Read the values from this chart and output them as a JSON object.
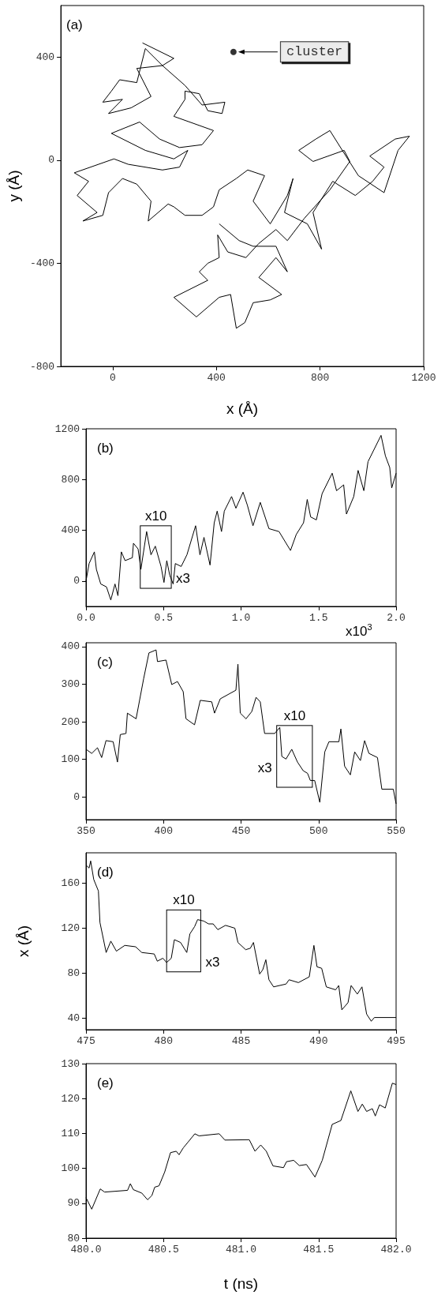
{
  "chart_data": [
    {
      "type": "line",
      "xlabel": "x (Å)",
      "ylabel": "y (Å)",
      "xlim": [
        -200,
        1200
      ],
      "xticks": [
        0,
        400,
        800,
        1200
      ],
      "ylim": [
        -800,
        600
      ],
      "yticks": [
        -800,
        -400,
        0,
        400
      ],
      "annotations": [
        "(a)"
      ],
      "series": [
        {
          "color": "#000000",
          "x": [
            115,
            236,
            192,
            126,
            93,
            27,
            -5,
            -38,
            38,
            -16,
            71,
            148,
            93,
            192,
            279,
            345,
            433,
            422,
            367,
            334,
            279,
            279,
            236,
            389,
            345,
            258,
            181,
            104,
            49,
            -5,
            126,
            236,
            290,
            258,
            192,
            60,
            5,
            -148,
            -93,
            -137,
            -60,
            -115,
            -38,
            -16,
            38,
            93,
            148,
            137,
            214,
            236,
            279,
            345,
            389,
            411,
            477,
            521,
            586,
            542,
            608,
            674,
            696,
            663,
            751,
            806,
            773,
            849,
            936,
            1003,
            1047,
            992,
            1090,
            1145,
            1101,
            1047,
            948,
            893,
            838,
            784,
            718,
            773,
            893,
            915,
            838,
            740,
            674,
            630,
            564,
            514,
            444,
            405,
            411,
            367,
            334,
            367,
            236,
            323,
            411,
            455,
            477,
            510,
            542,
            608,
            652,
            564,
            630,
            674,
            630,
            542,
            488,
            411
          ],
          "values": [
            455,
            395,
            367,
            433,
            301,
            312,
            268,
            225,
            236,
            181,
            203,
            247,
            356,
            367,
            290,
            214,
            225,
            181,
            192,
            258,
            268,
            236,
            170,
            115,
            60,
            49,
            82,
            148,
            126,
            104,
            38,
            5,
            38,
            -27,
            -38,
            -16,
            5,
            -49,
            -82,
            -137,
            -203,
            -236,
            -214,
            -126,
            -71,
            -93,
            -159,
            -236,
            -170,
            -181,
            -214,
            -214,
            -181,
            -115,
            -71,
            -38,
            -60,
            -159,
            -247,
            -137,
            -71,
            -203,
            -247,
            -345,
            -203,
            -82,
            -137,
            -82,
            -27,
            16,
            82,
            93,
            38,
            -126,
            -60,
            27,
            115,
            82,
            38,
            -5,
            38,
            -5,
            -115,
            -225,
            -312,
            -269,
            -323,
            -378,
            -356,
            -290,
            -378,
            -400,
            -433,
            -466,
            -532,
            -608,
            -532,
            -521,
            -652,
            -630,
            -553,
            -542,
            -521,
            -455,
            -378,
            -433,
            -334,
            -334,
            -312,
            -247
          ]
        },
        {
          "type": "scatter",
          "name": "cluster",
          "color": "#000000",
          "x": [
            466
          ],
          "values": [
            420
          ]
        }
      ]
    },
    {
      "type": "line",
      "xlim": [
        0,
        2
      ],
      "xticks": [
        {
          "value": 0,
          "label": "0.0"
        },
        0.5,
        {
          "value": 1,
          "label": "1.0"
        },
        1.5,
        {
          "value": 2,
          "label": "2.0"
        }
      ],
      "ylim": [
        -200,
        1200
      ],
      "yticks": [
        0,
        400,
        800,
        1200
      ],
      "annotations": [
        "(b)",
        "x10$^{3}$",
        "x10",
        "x3"
      ],
      "series": [
        {
          "color": "#000000",
          "x": [
            0,
            0.02,
            0.054,
            0.067,
            0.095,
            0.132,
            0.16,
            0.187,
            0.206,
            0.228,
            0.252,
            0.299,
            0.306,
            0.336,
            0.354,
            0.391,
            0.419,
            0.447,
            0.484,
            0.503,
            0.521,
            0.54,
            0.562,
            0.576,
            0.614,
            0.651,
            0.707,
            0.735,
            0.761,
            0.8,
            0.827,
            0.846,
            0.874,
            0.892,
            0.939,
            0.967,
            1.013,
            1.041,
            1.077,
            1.124,
            1.18,
            1.245,
            1.319,
            1.356,
            1.403,
            1.427,
            1.449,
            1.486,
            1.523,
            1.588,
            1.616,
            1.662,
            1.68,
            1.727,
            1.755,
            1.792,
            1.819,
            1.903,
            1.931,
            1.959,
            1.972,
            2.0
          ],
          "values": [
            0,
            138,
            230,
            92,
            -23,
            -46,
            -149,
            -23,
            -115,
            230,
            161,
            184,
            298,
            253,
            92,
            390,
            207,
            275,
            115,
            -11,
            161,
            46,
            -23,
            138,
            115,
            207,
            436,
            207,
            344,
            126,
            459,
            551,
            390,
            551,
            666,
            574,
            700,
            597,
            436,
            620,
            413,
            390,
            241,
            367,
            459,
            643,
            505,
            482,
            689,
            850,
            712,
            758,
            528,
            666,
            872,
            712,
            941,
            1148,
            987,
            895,
            734,
            850
          ]
        }
      ]
    },
    {
      "type": "line",
      "xlim": [
        350,
        550
      ],
      "xticks": [
        350,
        400,
        450,
        500,
        550
      ],
      "ylim": [
        -60,
        410
      ],
      "yticks": [
        0,
        100,
        200,
        300,
        400
      ],
      "annotations": [
        "(c)",
        "x10",
        "x3"
      ],
      "series": [
        {
          "color": "#000000",
          "x": [
            350,
            353.7,
            357.4,
            360.1,
            362.9,
            367.5,
            370.3,
            372.1,
            375.8,
            376.7,
            382.3,
            387.2,
            390.6,
            395.2,
            396.1,
            401.6,
            405.3,
            409,
            412.7,
            414.5,
            420,
            423.7,
            431.1,
            432.9,
            436.6,
            446.7,
            448,
            449.5,
            453.2,
            456.9,
            459.7,
            462.4,
            465.2,
            471.7,
            475,
            476.3,
            479,
            482.7,
            486.4,
            490.1,
            492.9,
            494.7,
            497.5,
            500.8,
            504,
            506.7,
            513.1,
            514.4,
            516.8,
            520.5,
            523.3,
            527,
            529.7,
            532.5,
            538,
            540.8,
            548.2,
            550
          ],
          "values": [
            127,
            116,
            131,
            105,
            150,
            147,
            93,
            166,
            169,
            223,
            208,
            315,
            383,
            391,
            360,
            364,
            299,
            307,
            280,
            208,
            192,
            257,
            253,
            223,
            261,
            284,
            353,
            223,
            208,
            227,
            265,
            253,
            169,
            169,
            185,
            108,
            101,
            127,
            93,
            70,
            63,
            44,
            44,
            -14,
            120,
            147,
            147,
            181,
            82,
            59,
            120,
            97,
            150,
            116,
            105,
            21,
            21,
            -18
          ]
        }
      ]
    },
    {
      "type": "line",
      "ylabel": "x (Å)",
      "xlim": [
        475,
        495
      ],
      "xticks": [
        475,
        480,
        485,
        490,
        495
      ],
      "ylim": [
        30,
        187
      ],
      "yticks": [
        40,
        80,
        120,
        160
      ],
      "annotations": [
        "(d)",
        "x10",
        "x3"
      ],
      "series": [
        {
          "color": "#000000",
          "x": [
            475,
            475.2,
            475.3,
            475.5,
            475.8,
            475.9,
            476.3,
            476.6,
            476.96,
            477.5,
            478.2,
            478.6,
            479.4,
            479.6,
            479.96,
            480.2,
            480.5,
            480.7,
            481.1,
            481.5,
            481.7,
            482,
            482.2,
            482.6,
            482.9,
            483.2,
            483.5,
            484,
            484.6,
            484.8,
            485.3,
            485.6,
            485.8,
            486.2,
            486.4,
            486.6,
            486.8,
            487.1,
            487.9,
            488.1,
            488.7,
            489.4,
            489.7,
            489.9,
            490.2,
            490.5,
            491.1,
            491.3,
            491.5,
            491.9,
            492.1,
            492.5,
            492.8,
            493.1,
            493.4,
            493.6,
            495
          ],
          "values": [
            176,
            173.5,
            179.8,
            163.3,
            153.1,
            125.2,
            98.5,
            108.6,
            99.7,
            104.8,
            103.6,
            98.5,
            97.2,
            90.8,
            93.4,
            89.6,
            93.4,
            109.9,
            107.4,
            98.5,
            115,
            121.4,
            127.7,
            126.4,
            123.9,
            123.9,
            118.8,
            122.6,
            120.1,
            107.4,
            101,
            102.3,
            107.4,
            79.4,
            83.2,
            92.1,
            74.3,
            68,
            70.5,
            74.3,
            71.8,
            76.9,
            104.8,
            85.8,
            84.5,
            68,
            65.4,
            69.2,
            47.6,
            54,
            69.2,
            61.6,
            68,
            43.8,
            37.5,
            40.8,
            40.8
          ]
        }
      ]
    },
    {
      "type": "line",
      "xlabel": "t (ns)",
      "xlim": [
        480,
        482
      ],
      "xticks": [
        {
          "value": 480,
          "label": "480.0"
        },
        {
          "value": 480.5,
          "label": "480.5"
        },
        {
          "value": 481,
          "label": "481.0"
        },
        {
          "value": 481.5,
          "label": "481.5"
        },
        {
          "value": 482,
          "label": "482.0"
        }
      ],
      "ylim": [
        80,
        130
      ],
      "yticks": [
        80,
        90,
        100,
        110,
        120,
        130
      ],
      "annotations": [
        "(e)"
      ],
      "series": [
        {
          "color": "#000000",
          "x": [
            480,
            480.037,
            480.092,
            480.12,
            480.268,
            480.286,
            480.305,
            480.36,
            480.397,
            480.425,
            480.443,
            480.471,
            480.508,
            480.545,
            480.582,
            480.6,
            480.628,
            480.656,
            480.702,
            480.729,
            480.859,
            480.896,
            481.053,
            481.09,
            481.127,
            481.163,
            481.206,
            481.274,
            481.293,
            481.339,
            481.376,
            481.422,
            481.477,
            481.524,
            481.588,
            481.644,
            481.708,
            481.754,
            481.782,
            481.81,
            481.847,
            481.866,
            481.893,
            481.93,
            481.976,
            482
          ],
          "values": [
            91.6,
            88.3,
            94.1,
            93.2,
            93.7,
            95.6,
            93.9,
            92.9,
            91,
            92.2,
            94.6,
            95,
            99,
            104.5,
            104.9,
            103.9,
            105.9,
            107.4,
            109.9,
            109.3,
            109.9,
            108.1,
            108.2,
            104.9,
            106.7,
            104.9,
            100.7,
            100.2,
            101.9,
            102.3,
            100.8,
            101.1,
            97.5,
            102.3,
            112.6,
            113.7,
            122.2,
            116.3,
            118.4,
            116.3,
            117.1,
            115,
            118.2,
            117.3,
            124.4,
            124
          ]
        }
      ]
    }
  ]
}
